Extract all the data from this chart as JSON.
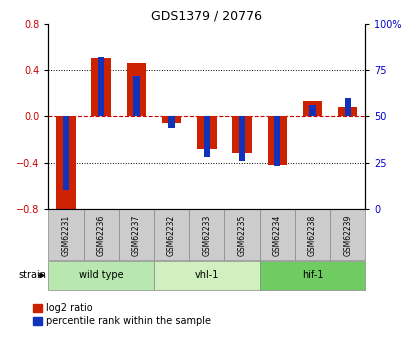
{
  "title": "GDS1379 / 20776",
  "samples": [
    "GSM62231",
    "GSM62236",
    "GSM62237",
    "GSM62232",
    "GSM62233",
    "GSM62235",
    "GSM62234",
    "GSM62238",
    "GSM62239"
  ],
  "log2_ratio": [
    -0.82,
    0.51,
    0.46,
    -0.06,
    -0.28,
    -0.32,
    -0.42,
    0.13,
    0.08
  ],
  "percentile": [
    10,
    82,
    72,
    44,
    28,
    26,
    23,
    56,
    60
  ],
  "groups": [
    {
      "label": "wild type",
      "start": 0,
      "end": 3,
      "color": "#b8e8b0"
    },
    {
      "label": "vhl-1",
      "start": 3,
      "end": 6,
      "color": "#d0f0c0"
    },
    {
      "label": "hif-1",
      "start": 6,
      "end": 9,
      "color": "#70cc60"
    }
  ],
  "ylim": [
    -0.8,
    0.8
  ],
  "y2lim": [
    0,
    100
  ],
  "y_ticks": [
    -0.8,
    -0.4,
    0.0,
    0.4,
    0.8
  ],
  "y2_ticks": [
    0,
    25,
    50,
    75,
    100
  ],
  "hline_color": "#cc0000",
  "bar_color_red": "#cc2200",
  "bar_color_blue": "#1133bb",
  "grid_color": "#000000",
  "bg_color": "#ffffff",
  "tick_color_left": "#cc0000",
  "tick_color_right": "#0000cc",
  "red_bar_width": 0.55,
  "blue_bar_width": 0.18,
  "sample_box_color": "#cccccc",
  "legend_red": "log2 ratio",
  "legend_blue": "percentile rank within the sample"
}
